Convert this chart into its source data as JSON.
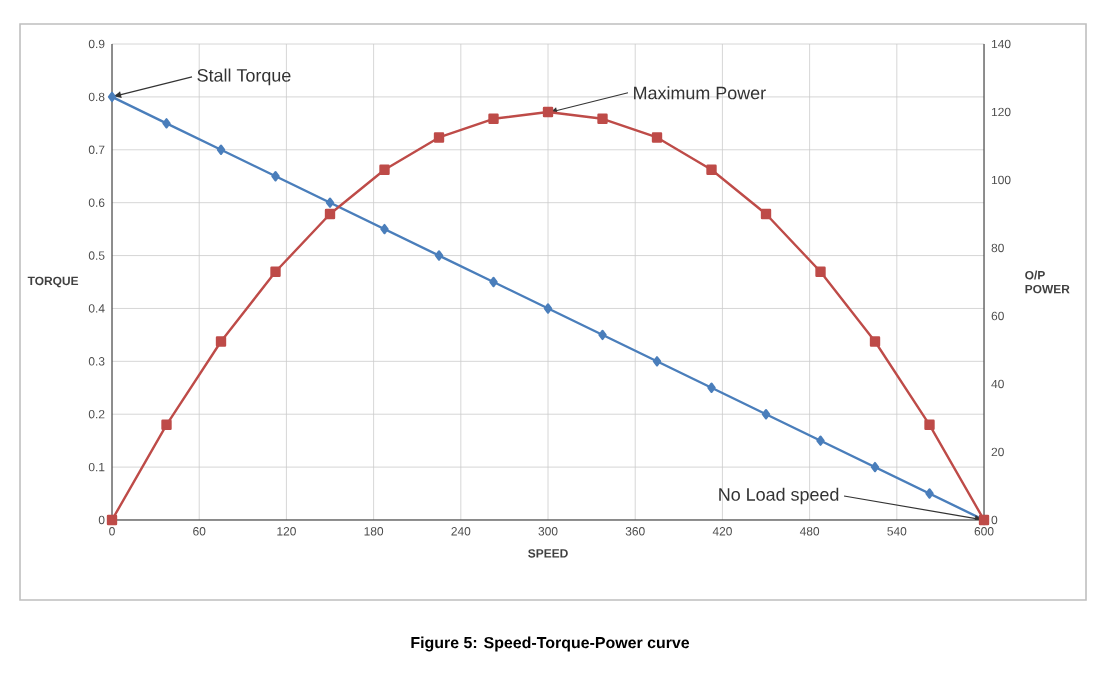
{
  "chart_data": {
    "type": "line",
    "xlabel": "SPEED",
    "ylabel": "TORQUE",
    "y2label": "O/P POWER",
    "x": [
      0,
      37.5,
      75,
      112.5,
      150,
      187.5,
      225,
      262.5,
      300,
      337.5,
      375,
      412.5,
      450,
      487.5,
      525,
      562.5,
      600
    ],
    "series": [
      {
        "color": "#4a7ebb",
        "marker": "diamond",
        "values": [
          0.8,
          0.75,
          0.7,
          0.65,
          0.6,
          0.55,
          0.5,
          0.45,
          0.4,
          0.35,
          0.3,
          0.25,
          0.2,
          0.15,
          0.1,
          0.05,
          0
        ]
      },
      {
        "color": "#be4b48",
        "marker": "square",
        "axis": "y2",
        "values": [
          0,
          28,
          52.5,
          73,
          90,
          103,
          112.5,
          118,
          120,
          118,
          112.5,
          103,
          90,
          73,
          52.5,
          28,
          0
        ]
      }
    ],
    "xlim": [
      0,
      600
    ],
    "xticks": [
      0,
      60,
      120,
      180,
      240,
      300,
      360,
      420,
      480,
      540,
      600
    ],
    "ylim": [
      0,
      0.9
    ],
    "yticks": [
      0,
      0.1,
      0.2,
      0.3,
      0.4,
      0.5,
      0.6,
      0.7,
      0.8,
      0.9
    ],
    "y2lim": [
      0,
      140
    ],
    "y2ticks": [
      0,
      20,
      40,
      60,
      80,
      100,
      120,
      140
    ],
    "grid": true,
    "annotations": [
      {
        "text": "Stall Torque",
        "x": 0,
        "y": 0.8
      },
      {
        "text": "Maximum Power",
        "x": 300,
        "y": 0.77
      },
      {
        "text": "No Load speed",
        "x": 600,
        "y": 0
      },
      "Figure 5: Speed-Torque-Power curve"
    ]
  }
}
